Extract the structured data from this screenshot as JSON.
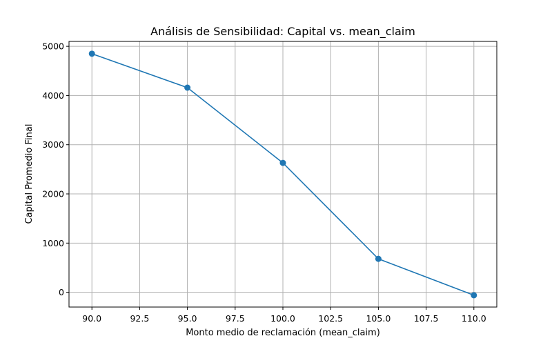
{
  "chart_data": {
    "type": "line",
    "title": "Análisis de Sensibilidad: Capital vs. mean_claim",
    "xlabel": "Monto medio de reclamación (mean_claim)",
    "ylabel": "Capital Promedio Final",
    "xlim": [
      88.8,
      111.2
    ],
    "ylim": [
      -300,
      5100
    ],
    "x_ticks": [
      90.0,
      92.5,
      95.0,
      97.5,
      100.0,
      102.5,
      105.0,
      107.5,
      110.0
    ],
    "x_tick_labels": [
      "90.0",
      "92.5",
      "95.0",
      "97.5",
      "100.0",
      "102.5",
      "105.0",
      "107.5",
      "110.0"
    ],
    "y_ticks": [
      0,
      1000,
      2000,
      3000,
      4000,
      5000
    ],
    "y_tick_labels": [
      "0",
      "1000",
      "2000",
      "3000",
      "4000",
      "5000"
    ],
    "grid": true,
    "color": "#1f77b4",
    "series": [
      {
        "x": [
          90,
          95,
          100,
          105,
          110
        ],
        "y": [
          4850,
          4160,
          2630,
          680,
          -60
        ]
      }
    ]
  }
}
